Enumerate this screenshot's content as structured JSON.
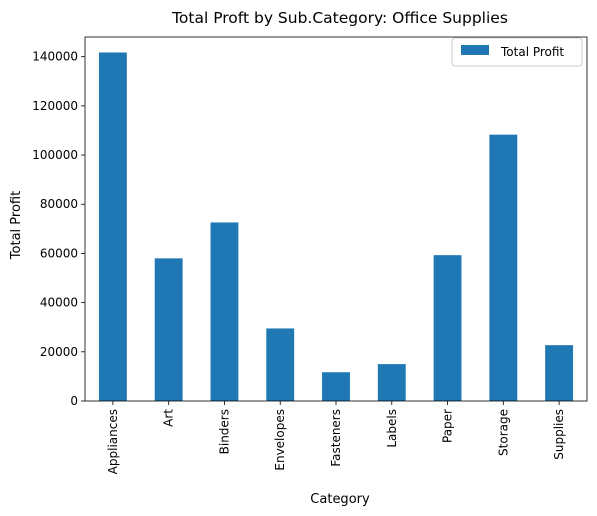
{
  "chart_data": {
    "type": "bar",
    "title": "Total Proft by Sub.Category: Office Supplies",
    "xlabel": "Category",
    "ylabel": "Total Profit",
    "categories": [
      "Appliances",
      "Art",
      "Binders",
      "Envelopes",
      "Fasteners",
      "Labels",
      "Paper",
      "Storage",
      "Supplies"
    ],
    "series": [
      {
        "name": "Total Profit",
        "color": "#1f77b4",
        "values": [
          141700,
          58000,
          72600,
          29500,
          11700,
          15000,
          59300,
          108300,
          22700
        ]
      }
    ],
    "ylim": [
      0,
      148000
    ],
    "yticks": [
      0,
      20000,
      40000,
      60000,
      80000,
      100000,
      120000,
      140000
    ],
    "grid": false,
    "legend_position": "top-right"
  }
}
